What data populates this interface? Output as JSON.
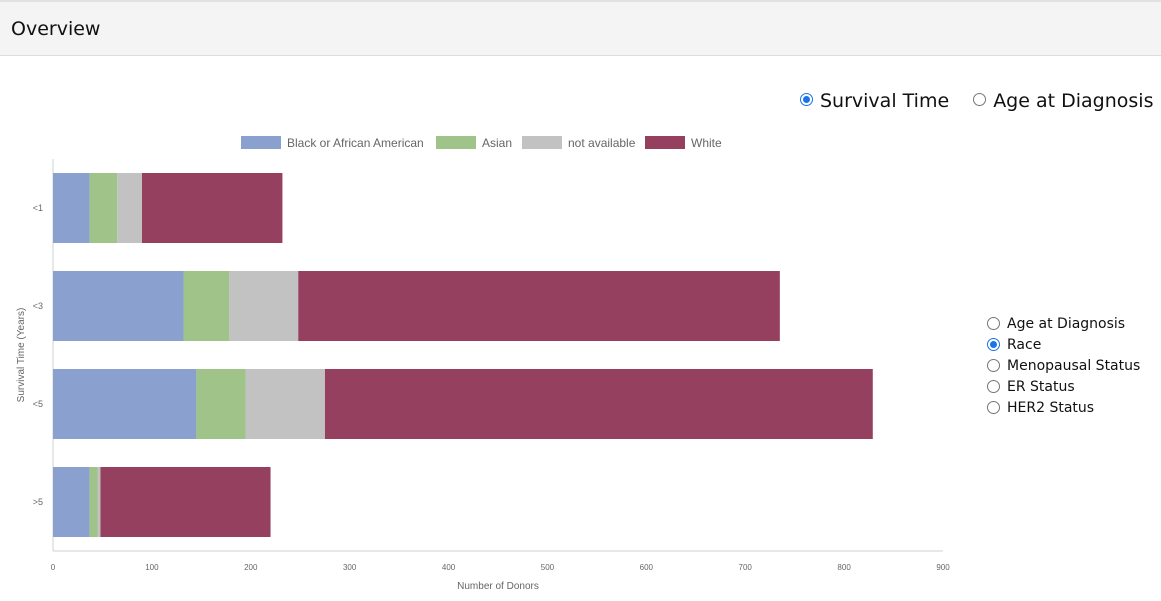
{
  "header": {
    "title": "Overview"
  },
  "view_toggle": {
    "options": [
      {
        "label": "Survival Time",
        "checked": true
      },
      {
        "label": "Age at Diagnosis",
        "checked": false
      }
    ]
  },
  "group_by": {
    "options": [
      {
        "label": "Age at Diagnosis",
        "checked": false
      },
      {
        "label": "Race",
        "checked": true
      },
      {
        "label": "Menopausal Status",
        "checked": false
      },
      {
        "label": "ER Status",
        "checked": false
      },
      {
        "label": "HER2 Status",
        "checked": false
      }
    ]
  },
  "chart_data": {
    "type": "bar",
    "orientation": "horizontal",
    "stacked": true,
    "categories": [
      "<1",
      "<3",
      "<5",
      ">5"
    ],
    "series": [
      {
        "name": "Black or African American",
        "color": "#8aa0cf",
        "values": [
          37,
          132,
          145,
          37
        ]
      },
      {
        "name": "Asian",
        "color": "#9fc388",
        "values": [
          28,
          46,
          50,
          8
        ]
      },
      {
        "name": "not available",
        "color": "#c2c2c2",
        "values": [
          25,
          70,
          80,
          3
        ]
      },
      {
        "name": "White",
        "color": "#95405f",
        "values": [
          142,
          487,
          554,
          172
        ]
      }
    ],
    "xlabel": "Number of Donors",
    "ylabel": "Survival Time (Years)",
    "xlim": [
      0,
      900
    ],
    "xticks": [
      "0",
      "100",
      "200",
      "300",
      "400",
      "500",
      "600",
      "700",
      "800",
      "900"
    ],
    "legend_position": "top",
    "grid": false
  }
}
